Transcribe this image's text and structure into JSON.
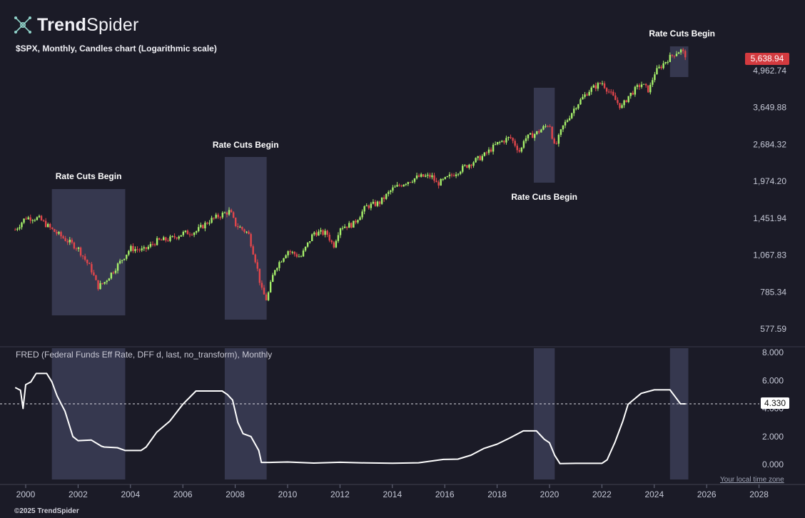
{
  "brand": {
    "bold": "Trend",
    "thin": "Spider"
  },
  "copyright": "©2025 TrendSpider",
  "timezone_note": "Your local time zone",
  "colors": {
    "background": "#1b1b27",
    "up": "#a6f06a",
    "down": "#e2464b",
    "shade": "#3b3d57",
    "line": "#ffffff",
    "badge_red": "#d33a3f"
  },
  "chart_data": [
    {
      "type": "candlestick",
      "title": "$SPX, Monthly, Candles chart (Logarithmic scale)",
      "scale": "log",
      "y_ticks": [
        "577.59",
        "785.34",
        "1,067.83",
        "1,451.94",
        "1,974.20",
        "2,684.32",
        "3,649.88",
        "4,962.74"
      ],
      "last_value_label": "5,638.94",
      "shaded_periods": [
        {
          "start": 2001.0,
          "end": 2003.8,
          "label": "Rate Cuts Begin"
        },
        {
          "start": 2007.6,
          "end": 2009.2,
          "label": "Rate Cuts Begin"
        },
        {
          "start": 2019.4,
          "end": 2020.2,
          "label": "Rate Cuts Begin"
        },
        {
          "start": 2024.6,
          "end": 2025.3,
          "label": "Rate Cuts Begin"
        }
      ],
      "series": [
        {
          "x": [
            1999.6,
            2000.0,
            2000.5,
            2001.0,
            2001.5,
            2002.0,
            2002.5,
            2002.75,
            2003.0,
            2003.5,
            2004.0,
            2004.5,
            2005.0,
            2005.5,
            2006.0,
            2006.5,
            2007.0,
            2007.5,
            2007.8,
            2008.0,
            2008.5,
            2008.8,
            2009.0,
            2009.2,
            2009.5,
            2010.0,
            2010.5,
            2011.0,
            2011.5,
            2011.75,
            2012.0,
            2012.5,
            2013.0,
            2013.5,
            2014.0,
            2014.5,
            2015.0,
            2015.5,
            2015.7,
            2016.0,
            2016.5,
            2017.0,
            2017.5,
            2018.0,
            2018.5,
            2018.9,
            2019.0,
            2019.5,
            2020.0,
            2020.2,
            2020.5,
            2021.0,
            2021.5,
            2022.0,
            2022.5,
            2022.75,
            2023.0,
            2023.5,
            2023.8,
            2024.0,
            2024.5,
            2024.8,
            2025.0,
            2025.2
          ],
          "values": [
            1320,
            1460,
            1450,
            1320,
            1220,
            1130,
            950,
            820,
            850,
            980,
            1130,
            1110,
            1200,
            1220,
            1280,
            1300,
            1420,
            1500,
            1540,
            1380,
            1280,
            1000,
            800,
            735,
            950,
            1110,
            1050,
            1290,
            1280,
            1150,
            1350,
            1380,
            1600,
            1650,
            1850,
            1960,
            2050,
            2060,
            1930,
            2000,
            2150,
            2300,
            2450,
            2700,
            2850,
            2500,
            2800,
            2950,
            3200,
            2600,
            3100,
            3700,
            4200,
            4500,
            3900,
            3650,
            4000,
            4450,
            4200,
            4850,
            5450,
            5750,
            5880,
            5638.94
          ]
        }
      ]
    },
    {
      "type": "line",
      "title": "FRED (Federal Funds Eff Rate, DFF d, last, no_transform), Monthly",
      "y_ticks": [
        "0.000",
        "2.000",
        "4.000",
        "6.000",
        "8.000"
      ],
      "last_value_label": "4.330",
      "x_ticks": [
        "2000",
        "2002",
        "2004",
        "2006",
        "2008",
        "2010",
        "2012",
        "2014",
        "2016",
        "2018",
        "2020",
        "2022",
        "2024",
        "2026",
        "2028"
      ],
      "shaded_periods": [
        {
          "start": 2001.0,
          "end": 2003.8
        },
        {
          "start": 2007.6,
          "end": 2009.2
        },
        {
          "start": 2019.4,
          "end": 2020.2
        },
        {
          "start": 2024.6,
          "end": 2025.3
        }
      ],
      "series": [
        {
          "x": [
            1999.6,
            1999.8,
            1999.9,
            2000.0,
            2000.2,
            2000.4,
            2000.8,
            2001.0,
            2001.2,
            2001.5,
            2001.8,
            2002.0,
            2002.5,
            2002.9,
            2003.0,
            2003.5,
            2003.8,
            2004.0,
            2004.4,
            2004.6,
            2005.0,
            2005.5,
            2006.0,
            2006.5,
            2007.0,
            2007.5,
            2007.7,
            2007.9,
            2008.1,
            2008.3,
            2008.6,
            2008.9,
            2009.0,
            2009.3,
            2010.0,
            2011.0,
            2012.0,
            2013.0,
            2014.0,
            2015.0,
            2015.95,
            2016.5,
            2017.0,
            2017.5,
            2018.0,
            2018.5,
            2019.0,
            2019.5,
            2019.8,
            2020.0,
            2020.2,
            2020.4,
            2021.0,
            2022.0,
            2022.2,
            2022.5,
            2022.8,
            2023.0,
            2023.5,
            2024.0,
            2024.6,
            2024.8,
            2025.0,
            2025.2
          ],
          "values": [
            5.5,
            5.3,
            4.0,
            5.7,
            5.9,
            6.5,
            6.5,
            5.9,
            4.9,
            3.8,
            2.0,
            1.7,
            1.75,
            1.3,
            1.25,
            1.2,
            1.0,
            1.0,
            1.0,
            1.25,
            2.3,
            3.1,
            4.3,
            5.25,
            5.25,
            5.25,
            5.0,
            4.6,
            3.0,
            2.2,
            2.0,
            1.0,
            0.15,
            0.15,
            0.18,
            0.1,
            0.16,
            0.11,
            0.09,
            0.12,
            0.36,
            0.38,
            0.66,
            1.15,
            1.45,
            1.91,
            2.4,
            2.4,
            1.8,
            1.55,
            0.65,
            0.06,
            0.08,
            0.08,
            0.33,
            1.6,
            3.1,
            4.3,
            5.08,
            5.33,
            5.33,
            4.83,
            4.33,
            4.33
          ]
        }
      ]
    }
  ]
}
